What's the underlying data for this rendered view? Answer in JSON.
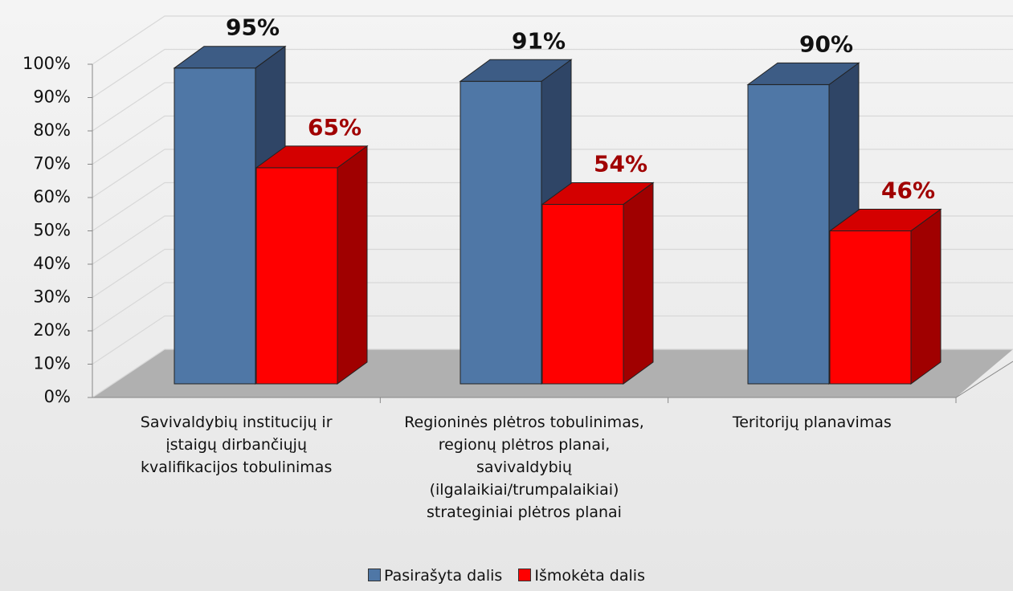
{
  "chart_data": {
    "type": "bar3d",
    "categories": [
      "Savivaldybių institucijų ir įstaigų dirbančiųjų kvalifikacijos tobulinimas",
      "Regioninės plėtros tobulinimas, regionų plėtros planai, savivaldybių (ilgalaikiai/trumpalaikiai) strateginiai plėtros planai",
      "Teritorijų planavimas"
    ],
    "series": [
      {
        "name": "Pasirašyta dalis",
        "color": "#4f77a6",
        "values": [
          95,
          91,
          90
        ],
        "value_labels": [
          "95%",
          "91%",
          "90%"
        ]
      },
      {
        "name": "Išmokėta dalis",
        "color": "#ff0000",
        "values": [
          65,
          54,
          46
        ],
        "value_labels": [
          "65%",
          "54%",
          "46%"
        ]
      }
    ],
    "ylim": [
      0,
      100
    ],
    "yticks": [
      {
        "value": 0,
        "label": "0%"
      },
      {
        "value": 10,
        "label": "10%"
      },
      {
        "value": 20,
        "label": "20%"
      },
      {
        "value": 30,
        "label": "30%"
      },
      {
        "value": 40,
        "label": "40%"
      },
      {
        "value": 50,
        "label": "50%"
      },
      {
        "value": 60,
        "label": "60%"
      },
      {
        "value": 70,
        "label": "70%"
      },
      {
        "value": 80,
        "label": "80%"
      },
      {
        "value": 90,
        "label": "90%"
      },
      {
        "value": 100,
        "label": "100%"
      }
    ],
    "grid": true,
    "legend": "bottom"
  }
}
